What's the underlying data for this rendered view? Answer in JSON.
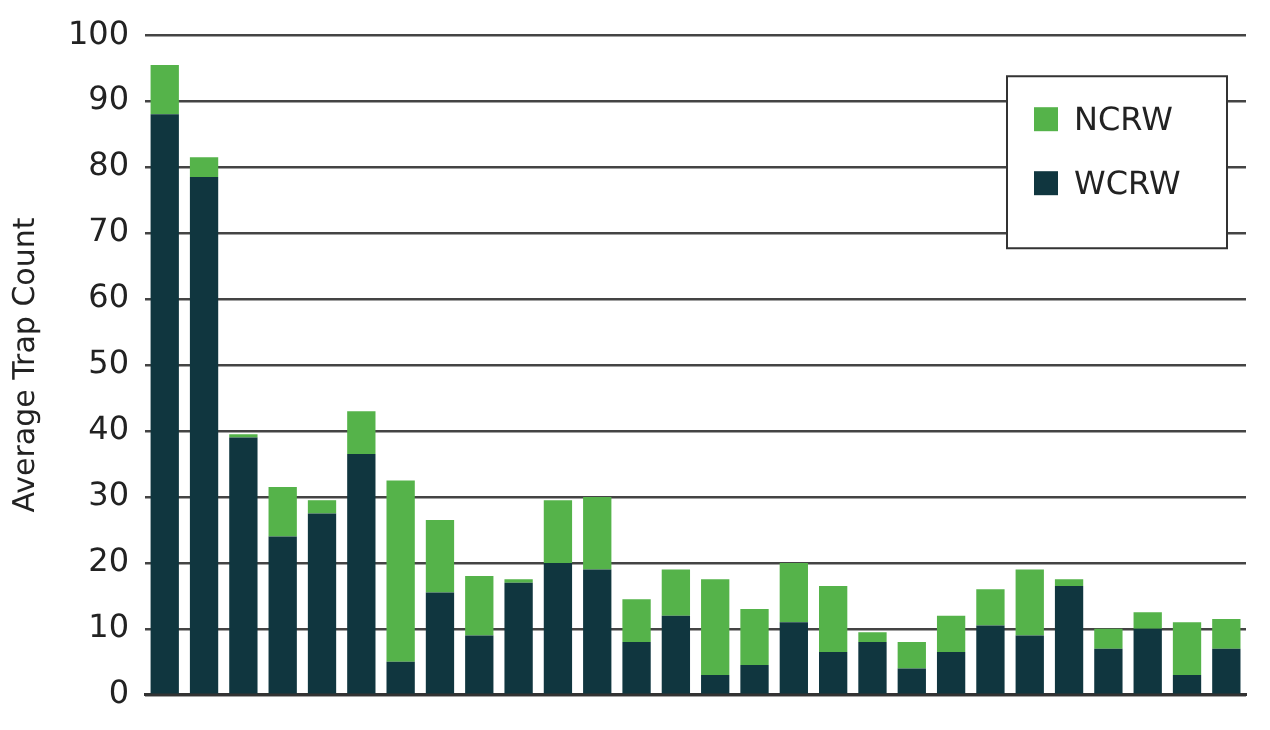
{
  "chart_data": {
    "type": "bar",
    "stacked": true,
    "ylabel": "Average Trap Count",
    "categories": [
      null,
      null,
      null,
      null,
      null,
      null,
      null,
      null,
      null,
      null,
      null,
      null,
      null,
      null,
      null,
      null,
      null,
      null,
      null,
      null,
      null,
      null,
      null,
      null,
      null,
      null,
      null,
      null
    ],
    "series": [
      {
        "name": "WCRW",
        "color": "#10363f",
        "values": [
          88,
          78.5,
          39,
          24,
          27.5,
          36.5,
          5,
          15.5,
          9,
          17,
          20,
          19,
          8,
          12,
          3,
          4.5,
          11,
          6.5,
          8,
          4,
          6.5,
          10.5,
          9,
          16.5,
          7,
          10,
          3,
          7
        ]
      },
      {
        "name": "NCRW",
        "color": "#55b34a",
        "values": [
          7.5,
          3,
          0.5,
          7.5,
          2,
          6.5,
          27.5,
          11,
          9,
          0.5,
          9.5,
          11,
          6.5,
          7,
          14.5,
          8.5,
          9,
          10,
          1.5,
          4,
          5.5,
          5.5,
          10,
          1,
          3,
          2.5,
          8,
          4.5
        ]
      }
    ],
    "ylim": [
      0,
      100
    ],
    "yticks": [
      0,
      10,
      20,
      30,
      40,
      50,
      60,
      70,
      80,
      90,
      100
    ],
    "grid": "y",
    "legend": "top right",
    "tick_labels": "y"
  }
}
